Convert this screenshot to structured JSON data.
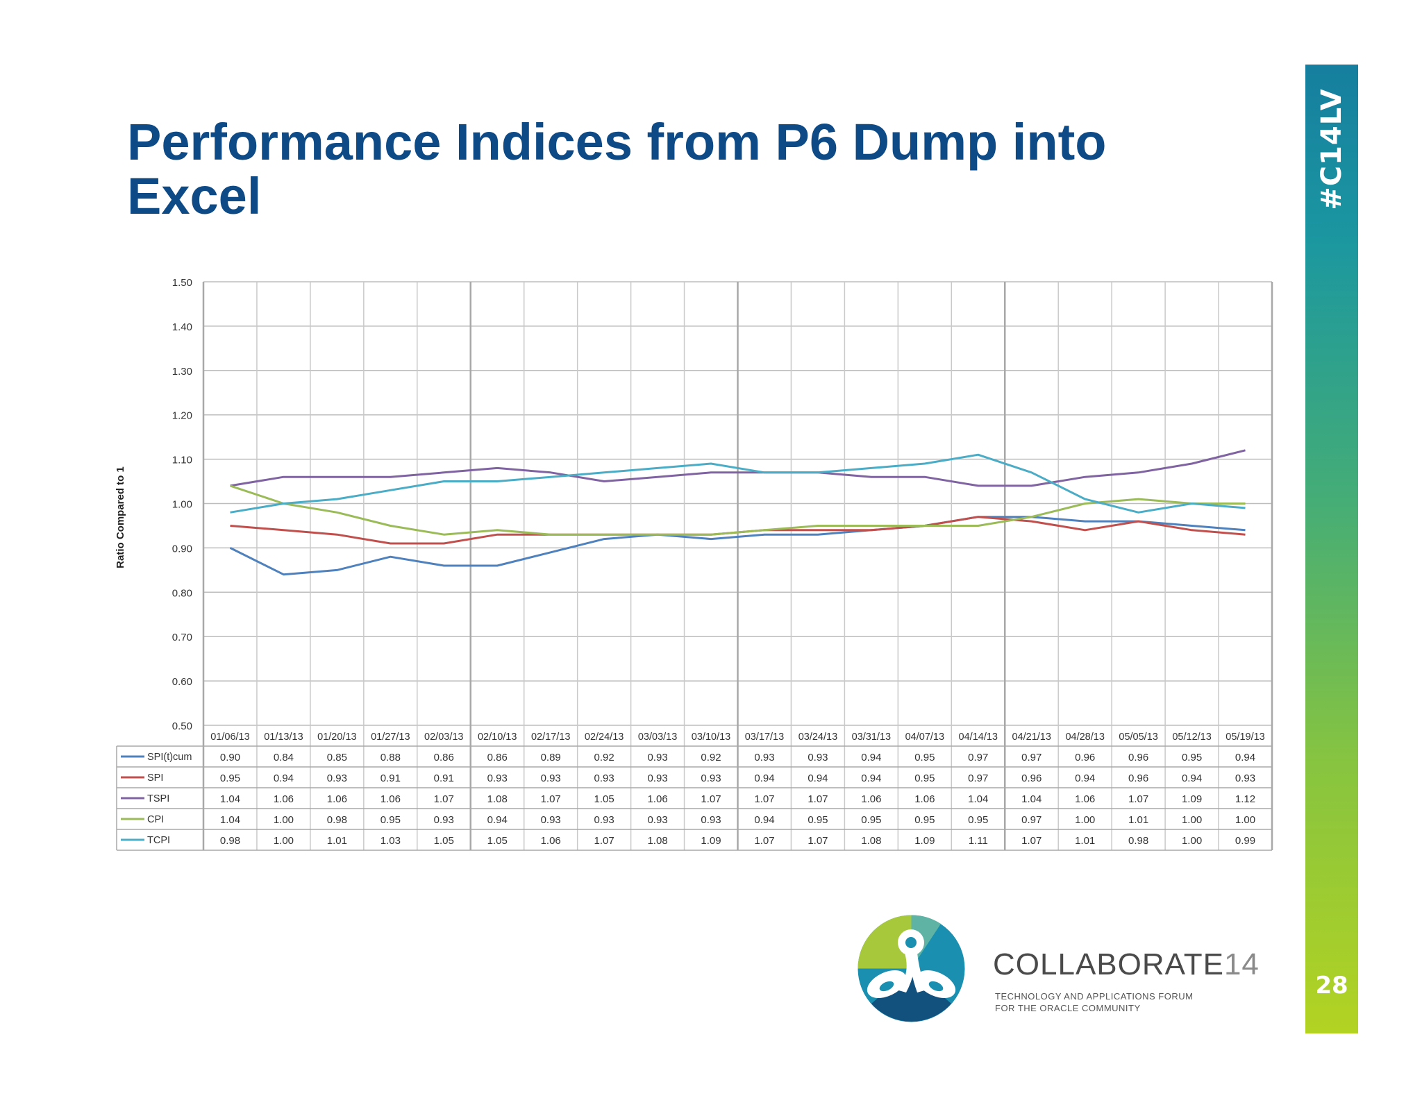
{
  "slide": {
    "title": "Performance Indices from P6 Dump into Excel",
    "hashtag": "#C14LV",
    "page_number": "28"
  },
  "brand": {
    "name": "COLLABORATE",
    "number": "14",
    "tagline_line1": "TECHNOLOGY AND APPLICATIONS FORUM",
    "tagline_line2": "FOR THE ORACLE COMMUNITY"
  },
  "colors": {
    "title": "#0d4a86",
    "series": [
      "#4f81bd",
      "#c0504d",
      "#8064a2",
      "#9bbb59",
      "#4bacc6"
    ]
  },
  "chart_data": {
    "type": "line",
    "title": "",
    "xlabel": "",
    "ylabel": "Ratio Compared to 1",
    "ylim": [
      0.5,
      1.5
    ],
    "yticks": [
      "1.50",
      "1.40",
      "1.30",
      "1.20",
      "1.10",
      "1.00",
      "0.90",
      "0.80",
      "0.70",
      "0.60",
      "0.50"
    ],
    "grid": true,
    "legend_placement": "data-table-left",
    "categories": [
      "01/06/13",
      "01/13/13",
      "01/20/13",
      "01/27/13",
      "02/03/13",
      "02/10/13",
      "02/17/13",
      "02/24/13",
      "03/03/13",
      "03/10/13",
      "03/17/13",
      "03/24/13",
      "03/31/13",
      "04/07/13",
      "04/14/13",
      "04/21/13",
      "04/28/13",
      "05/05/13",
      "05/12/13",
      "05/19/13"
    ],
    "series": [
      {
        "name": "SPI(t)cum",
        "values": [
          0.9,
          0.84,
          0.85,
          0.88,
          0.86,
          0.86,
          0.89,
          0.92,
          0.93,
          0.92,
          0.93,
          0.93,
          0.94,
          0.95,
          0.97,
          0.97,
          0.96,
          0.96,
          0.95,
          0.94
        ]
      },
      {
        "name": "SPI",
        "values": [
          0.95,
          0.94,
          0.93,
          0.91,
          0.91,
          0.93,
          0.93,
          0.93,
          0.93,
          0.93,
          0.94,
          0.94,
          0.94,
          0.95,
          0.97,
          0.96,
          0.94,
          0.96,
          0.94,
          0.93
        ]
      },
      {
        "name": "TSPI",
        "values": [
          1.04,
          1.06,
          1.06,
          1.06,
          1.07,
          1.08,
          1.07,
          1.05,
          1.06,
          1.07,
          1.07,
          1.07,
          1.06,
          1.06,
          1.04,
          1.04,
          1.06,
          1.07,
          1.09,
          1.12
        ]
      },
      {
        "name": "CPI",
        "values": [
          1.04,
          1.0,
          0.98,
          0.95,
          0.93,
          0.94,
          0.93,
          0.93,
          0.93,
          0.93,
          0.94,
          0.95,
          0.95,
          0.95,
          0.95,
          0.97,
          1.0,
          1.01,
          1.0,
          1.0
        ]
      },
      {
        "name": "TCPI",
        "values": [
          0.98,
          1.0,
          1.01,
          1.03,
          1.05,
          1.05,
          1.06,
          1.07,
          1.08,
          1.09,
          1.07,
          1.07,
          1.08,
          1.09,
          1.11,
          1.07,
          1.01,
          0.98,
          1.0,
          0.99
        ]
      }
    ]
  }
}
